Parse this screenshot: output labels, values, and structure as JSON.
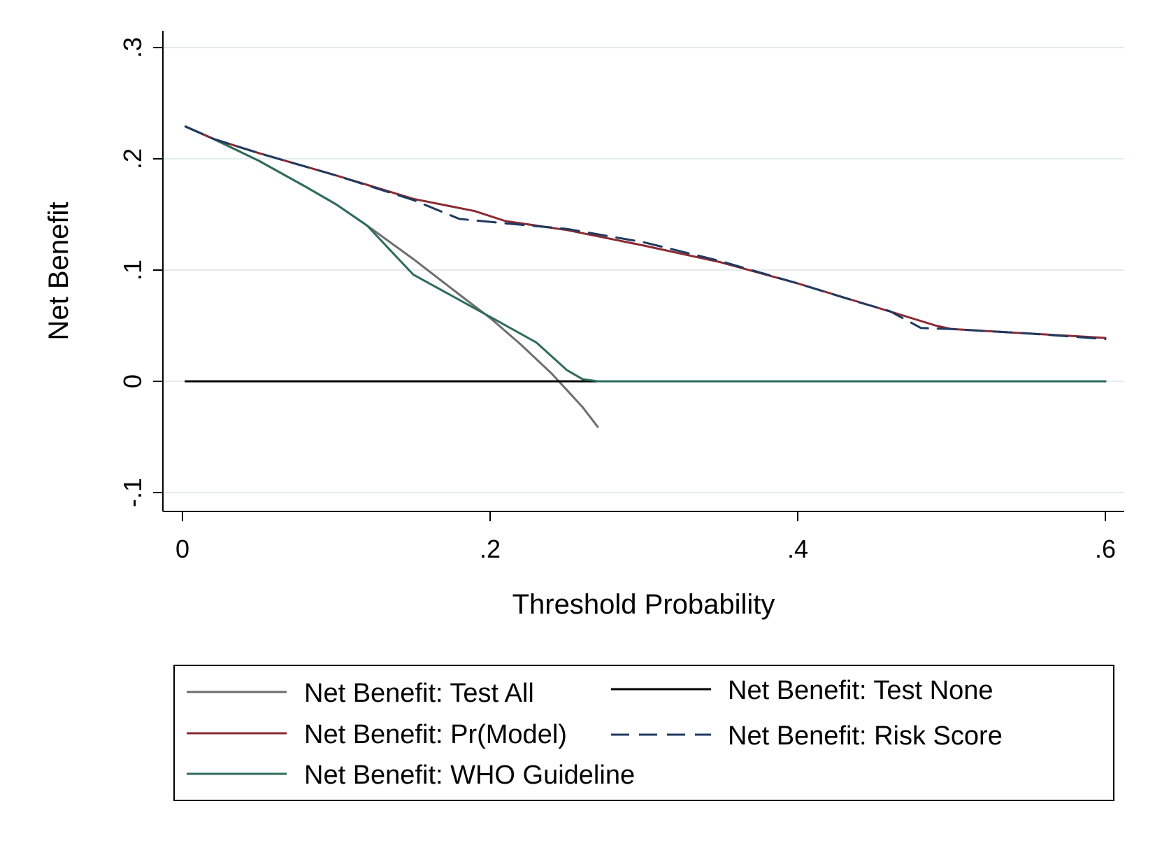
{
  "chart_data": {
    "type": "line",
    "title": "",
    "xlabel": "Threshold Probability",
    "ylabel": "Net Benefit",
    "xlim": [
      0,
      0.6
    ],
    "ylim": [
      -0.1,
      0.3
    ],
    "xticks": [
      {
        "value": 0,
        "label": "0"
      },
      {
        "value": 0.2,
        "label": ".2"
      },
      {
        "value": 0.4,
        "label": ".4"
      },
      {
        "value": 0.6,
        "label": ".6"
      }
    ],
    "yticks": [
      {
        "value": -0.1,
        "label": "-.1"
      },
      {
        "value": 0,
        "label": "0"
      },
      {
        "value": 0.1,
        "label": ".1"
      },
      {
        "value": 0.2,
        "label": ".2"
      },
      {
        "value": 0.3,
        "label": ".3"
      }
    ],
    "grid": true,
    "legend_placement": "bottom",
    "series": [
      {
        "name": "Net Benefit: Test All",
        "color": "#6e6e6e",
        "dash": "solid",
        "points": [
          [
            0.002,
            0.229
          ],
          [
            0.02,
            0.218
          ],
          [
            0.05,
            0.198
          ],
          [
            0.08,
            0.175
          ],
          [
            0.1,
            0.159
          ],
          [
            0.12,
            0.14
          ],
          [
            0.15,
            0.11
          ],
          [
            0.18,
            0.078
          ],
          [
            0.2,
            0.057
          ],
          [
            0.22,
            0.033
          ],
          [
            0.24,
            0.007
          ],
          [
            0.25,
            -0.008
          ],
          [
            0.26,
            -0.023
          ],
          [
            0.27,
            -0.041
          ]
        ]
      },
      {
        "name": "Net Benefit: Test None",
        "color": "#000000",
        "dash": "solid",
        "points": [
          [
            0.002,
            0
          ],
          [
            0.6,
            0
          ]
        ]
      },
      {
        "name": "Net Benefit: Pr(Model)",
        "color": "#8a2a33",
        "dash": "solid",
        "points": [
          [
            0.002,
            0.229
          ],
          [
            0.02,
            0.218
          ],
          [
            0.05,
            0.205
          ],
          [
            0.1,
            0.185
          ],
          [
            0.15,
            0.164
          ],
          [
            0.19,
            0.153
          ],
          [
            0.21,
            0.144
          ],
          [
            0.25,
            0.136
          ],
          [
            0.3,
            0.122
          ],
          [
            0.35,
            0.107
          ],
          [
            0.4,
            0.088
          ],
          [
            0.45,
            0.067
          ],
          [
            0.49,
            0.05
          ],
          [
            0.5,
            0.047
          ],
          [
            0.55,
            0.043
          ],
          [
            0.6,
            0.039
          ]
        ]
      },
      {
        "name": "Net Benefit: Risk Score",
        "color": "#1f3a5f",
        "dash": "dashed",
        "points": [
          [
            0.002,
            0.229
          ],
          [
            0.02,
            0.218
          ],
          [
            0.05,
            0.205
          ],
          [
            0.1,
            0.185
          ],
          [
            0.15,
            0.163
          ],
          [
            0.18,
            0.146
          ],
          [
            0.21,
            0.142
          ],
          [
            0.25,
            0.137
          ],
          [
            0.3,
            0.125
          ],
          [
            0.35,
            0.108
          ],
          [
            0.4,
            0.088
          ],
          [
            0.44,
            0.071
          ],
          [
            0.46,
            0.063
          ],
          [
            0.48,
            0.048
          ],
          [
            0.5,
            0.047
          ],
          [
            0.55,
            0.043
          ],
          [
            0.6,
            0.038
          ]
        ]
      },
      {
        "name": "Net Benefit: WHO Guideline",
        "color": "#2e6b5c",
        "dash": "solid",
        "points": [
          [
            0.002,
            0.229
          ],
          [
            0.02,
            0.218
          ],
          [
            0.05,
            0.198
          ],
          [
            0.08,
            0.175
          ],
          [
            0.1,
            0.159
          ],
          [
            0.12,
            0.14
          ],
          [
            0.15,
            0.096
          ],
          [
            0.2,
            0.058
          ],
          [
            0.23,
            0.035
          ],
          [
            0.25,
            0.01
          ],
          [
            0.26,
            0.002
          ],
          [
            0.27,
            0
          ],
          [
            0.3,
            0
          ],
          [
            0.4,
            0
          ],
          [
            0.5,
            0
          ],
          [
            0.6,
            0
          ]
        ]
      }
    ],
    "legend": [
      {
        "series": 0,
        "label": "Net Benefit: Test All"
      },
      {
        "series": 1,
        "label": "Net Benefit: Test None"
      },
      {
        "series": 2,
        "label": "Net Benefit: Pr(Model)"
      },
      {
        "series": 3,
        "label": "Net Benefit: Risk Score"
      },
      {
        "series": 4,
        "label": "Net Benefit: WHO Guideline"
      }
    ]
  }
}
